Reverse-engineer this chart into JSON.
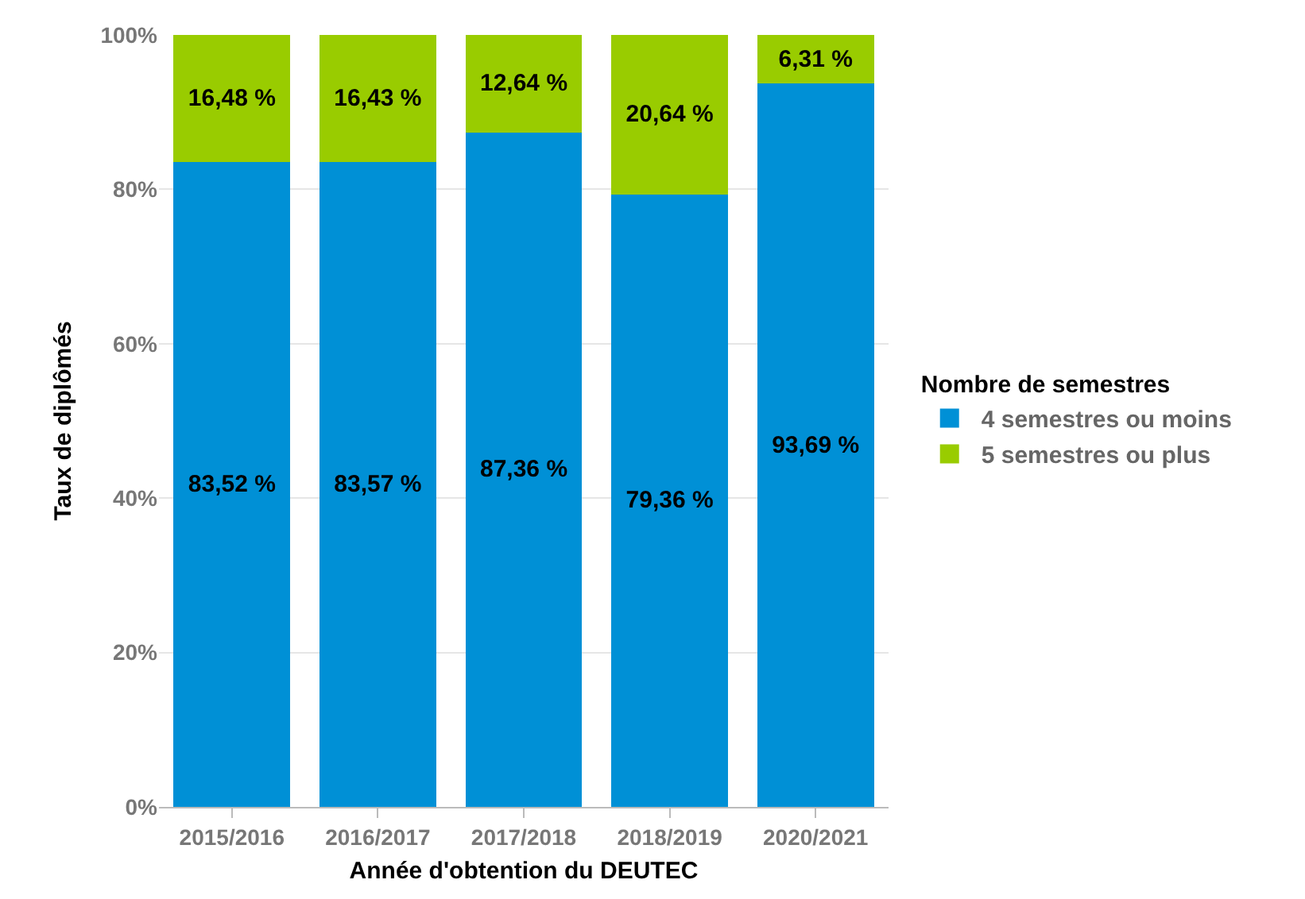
{
  "chart_data": {
    "type": "bar",
    "stacked": true,
    "xlabel": "Année d'obtention du DEUTEC",
    "ylabel": "Taux de diplômés",
    "legend_title": "Nombre de semestres",
    "categories": [
      "2015/2016",
      "2016/2017",
      "2017/2018",
      "2018/2019",
      "2020/2021"
    ],
    "series": [
      {
        "name": "4 semestres ou moins",
        "color": "#0090d6",
        "values": [
          83.52,
          83.57,
          87.36,
          79.36,
          93.69
        ],
        "value_labels": [
          "83,52 %",
          "83,57 %",
          "87,36 %",
          "79,36 %",
          "93,69 %"
        ]
      },
      {
        "name": "5 semestres ou plus",
        "color": "#99cc00",
        "values": [
          16.48,
          16.43,
          12.64,
          20.64,
          6.31
        ],
        "value_labels": [
          "16,48 %",
          "16,43 %",
          "12,64 %",
          "20,64 %",
          "6,31 %"
        ]
      }
    ],
    "ylim": [
      0,
      100
    ],
    "yticks": [
      {
        "value": 0,
        "label": "0%"
      },
      {
        "value": 20,
        "label": "20%"
      },
      {
        "value": 40,
        "label": "40%"
      },
      {
        "value": 60,
        "label": "60%"
      },
      {
        "value": 80,
        "label": "80%"
      },
      {
        "value": 100,
        "label": "100%"
      }
    ],
    "grid": "y",
    "legend": "right"
  }
}
